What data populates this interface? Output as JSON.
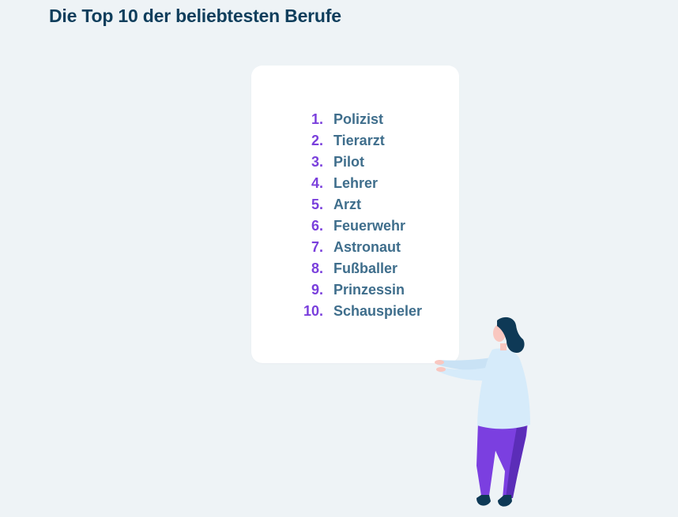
{
  "page": {
    "title": "Die Top 10 der beliebtesten Berufe"
  },
  "list": {
    "items": [
      {
        "number": "1.",
        "label": "Polizist"
      },
      {
        "number": "2.",
        "label": "Tierarzt"
      },
      {
        "number": "3.",
        "label": "Pilot"
      },
      {
        "number": "4.",
        "label": "Lehrer"
      },
      {
        "number": "5.",
        "label": "Arzt"
      },
      {
        "number": "6.",
        "label": "Feuerwehr"
      },
      {
        "number": "7.",
        "label": "Astronaut"
      },
      {
        "number": "8.",
        "label": "Fußballer"
      },
      {
        "number": "9.",
        "label": "Prinzessin"
      },
      {
        "number": "10.",
        "label": "Schauspieler"
      }
    ]
  },
  "colors": {
    "background": "#eef3f6",
    "title": "#0f3e5c",
    "number": "#7a3fdc",
    "label": "#3f6e8c",
    "card": "#ffffff",
    "shirt": "#d6ebfa",
    "pants": "#7b3fe0",
    "hair": "#0e3956"
  },
  "illustration": {
    "icon": "woman-holding-sign-icon"
  }
}
